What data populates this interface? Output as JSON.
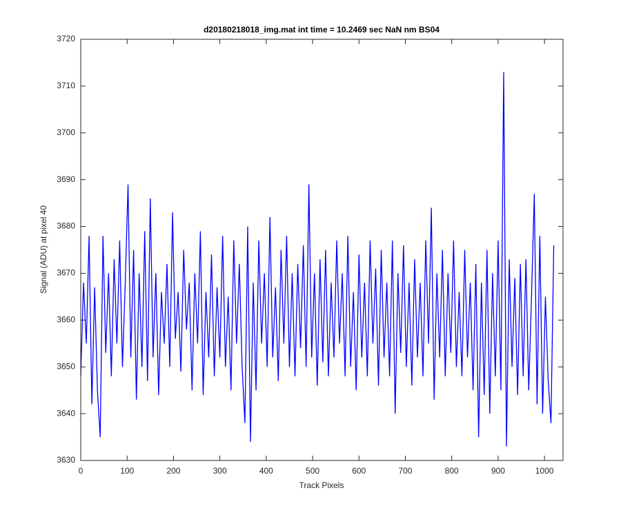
{
  "chart_data": {
    "type": "line",
    "title": "d20180218018_img.mat int time = 10.2469 sec  NaN nm BS04",
    "x_label": "Track Pixels",
    "y_label": "Signal (ADU) at pixel 40",
    "color": "#0000ff",
    "xlim": [
      0,
      1040
    ],
    "ylim": [
      3630,
      3720
    ],
    "xticks": [
      0,
      100,
      200,
      300,
      400,
      500,
      600,
      700,
      800,
      900,
      1000
    ],
    "yticks": [
      3630,
      3640,
      3650,
      3660,
      3670,
      3680,
      3690,
      3700,
      3710,
      3720
    ],
    "x": [
      0,
      6,
      12,
      18,
      24,
      30,
      36,
      42,
      48,
      54,
      60,
      66,
      72,
      78,
      84,
      90,
      96,
      102,
      108,
      114,
      120,
      126,
      132,
      138,
      144,
      150,
      156,
      162,
      168,
      174,
      180,
      186,
      192,
      198,
      204,
      210,
      216,
      222,
      228,
      234,
      240,
      246,
      252,
      258,
      264,
      270,
      276,
      282,
      288,
      294,
      300,
      306,
      312,
      318,
      324,
      330,
      336,
      342,
      348,
      354,
      360,
      366,
      372,
      378,
      384,
      390,
      396,
      402,
      408,
      414,
      420,
      426,
      432,
      438,
      444,
      450,
      456,
      462,
      468,
      474,
      480,
      486,
      492,
      498,
      504,
      510,
      516,
      522,
      528,
      534,
      540,
      546,
      552,
      558,
      564,
      570,
      576,
      582,
      588,
      594,
      600,
      606,
      612,
      618,
      624,
      630,
      636,
      642,
      648,
      654,
      660,
      666,
      672,
      678,
      684,
      690,
      696,
      702,
      708,
      714,
      720,
      726,
      732,
      738,
      744,
      750,
      756,
      762,
      768,
      774,
      780,
      786,
      792,
      798,
      804,
      810,
      816,
      822,
      828,
      834,
      840,
      846,
      852,
      858,
      864,
      870,
      876,
      882,
      888,
      894,
      900,
      906,
      912,
      918,
      924,
      930,
      936,
      942,
      948,
      954,
      960,
      966,
      972,
      978,
      984,
      990,
      996,
      1002,
      1008,
      1014,
      1020
    ],
    "values": [
      3648,
      3668,
      3655,
      3678,
      3642,
      3667,
      3645,
      3635,
      3678,
      3653,
      3670,
      3648,
      3673,
      3655,
      3677,
      3650,
      3668,
      3689,
      3652,
      3675,
      3643,
      3670,
      3650,
      3679,
      3647,
      3686,
      3652,
      3670,
      3644,
      3666,
      3655,
      3672,
      3650,
      3683,
      3656,
      3666,
      3649,
      3675,
      3658,
      3668,
      3645,
      3670,
      3655,
      3679,
      3644,
      3666,
      3652,
      3674,
      3648,
      3667,
      3652,
      3678,
      3650,
      3665,
      3645,
      3677,
      3655,
      3672,
      3650,
      3638,
      3680,
      3634,
      3668,
      3645,
      3677,
      3655,
      3670,
      3650,
      3682,
      3652,
      3667,
      3647,
      3675,
      3655,
      3678,
      3650,
      3670,
      3648,
      3672,
      3654,
      3676,
      3650,
      3689,
      3652,
      3670,
      3646,
      3673,
      3651,
      3675,
      3648,
      3668,
      3652,
      3677,
      3655,
      3670,
      3648,
      3678,
      3650,
      3666,
      3645,
      3674,
      3652,
      3668,
      3648,
      3677,
      3655,
      3671,
      3646,
      3675,
      3652,
      3668,
      3648,
      3677,
      3640,
      3670,
      3653,
      3676,
      3650,
      3668,
      3646,
      3673,
      3652,
      3668,
      3648,
      3677,
      3655,
      3684,
      3643,
      3670,
      3652,
      3675,
      3648,
      3670,
      3653,
      3677,
      3650,
      3666,
      3648,
      3675,
      3652,
      3668,
      3645,
      3672,
      3635,
      3668,
      3644,
      3675,
      3640,
      3670,
      3648,
      3677,
      3645,
      3713,
      3633,
      3673,
      3650,
      3669,
      3644,
      3672,
      3648,
      3673,
      3645,
      3665,
      3687,
      3642,
      3678,
      3640,
      3665,
      3647,
      3638,
      3676
    ]
  }
}
